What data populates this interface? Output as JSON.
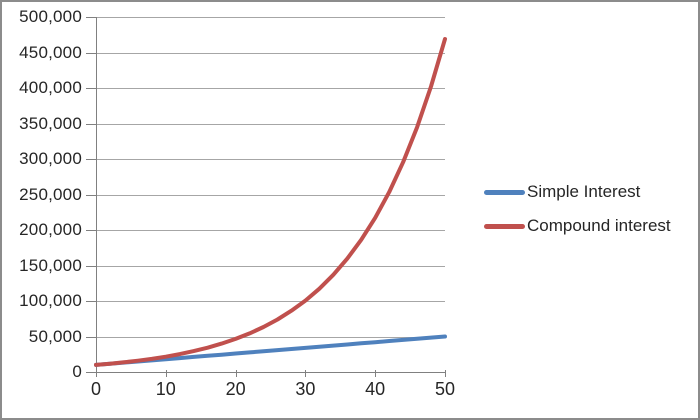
{
  "chart_data": {
    "type": "line",
    "grid": true,
    "legend_position": "right",
    "x_axis": {
      "range": [
        0,
        50
      ],
      "tick_values": [
        0,
        10,
        20,
        30,
        40,
        50
      ],
      "tick_labels": [
        "0",
        "10",
        "20",
        "30",
        "40",
        "50"
      ]
    },
    "y_axis": {
      "range": [
        0,
        500000
      ],
      "tick_values": [
        0,
        50000,
        100000,
        150000,
        200000,
        250000,
        300000,
        350000,
        400000,
        450000,
        500000
      ],
      "tick_labels": [
        "0",
        "50,000",
        "100,000",
        "150,000",
        "200,000",
        "250,000",
        "300,000",
        "350,000",
        "400,000",
        "450,000",
        "500,000"
      ]
    },
    "series": [
      {
        "name": "Simple Interest",
        "color": "#4F81BD",
        "x": [
          0,
          2,
          4,
          6,
          8,
          10,
          12,
          14,
          16,
          18,
          20,
          22,
          24,
          26,
          28,
          30,
          32,
          34,
          36,
          38,
          40,
          42,
          44,
          46,
          48,
          50
        ],
        "y": [
          10000,
          11600,
          13200,
          14800,
          16400,
          18000,
          19600,
          21200,
          22800,
          24400,
          26000,
          27600,
          29200,
          30800,
          32400,
          34000,
          35600,
          37200,
          38800,
          40400,
          42000,
          43600,
          45200,
          46800,
          48400,
          50000
        ]
      },
      {
        "name": "Compound interest",
        "color": "#C0504D",
        "x": [
          0,
          2,
          4,
          6,
          8,
          10,
          12,
          14,
          16,
          18,
          20,
          22,
          24,
          26,
          28,
          30,
          32,
          34,
          36,
          38,
          40,
          42,
          44,
          46,
          48,
          50
        ],
        "y": [
          10000,
          11664,
          13605,
          15869,
          18509,
          21589,
          25182,
          29372,
          34259,
          39960,
          46610,
          54365,
          63412,
          73964,
          86271,
          100627,
          117371,
          136901,
          159682,
          186253,
          217245,
          253395,
          295560,
          344741,
          402106,
          469016
        ]
      }
    ]
  },
  "colors": {
    "gridline": "#A6A6A6",
    "axis": "#808080",
    "text": "#262626",
    "frame_border": "#8C8C8C",
    "background": "#FFFFFF"
  }
}
